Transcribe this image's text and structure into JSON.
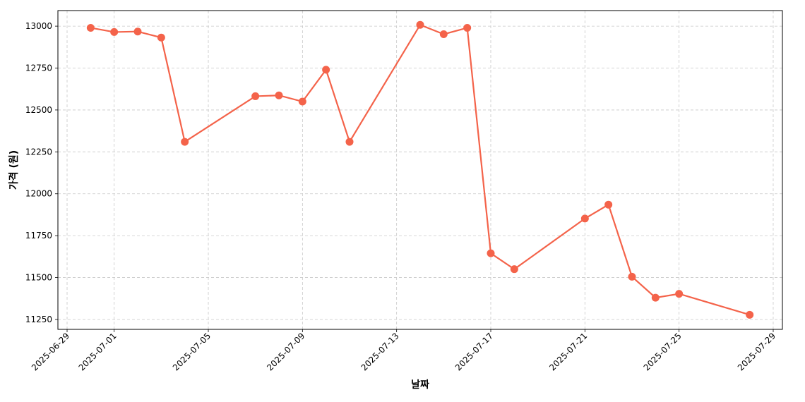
{
  "chart_data": {
    "type": "line",
    "x_label": "날짜",
    "y_label": "가격 (원)",
    "x": [
      "2025-06-30",
      "2025-07-01",
      "2025-07-02",
      "2025-07-03",
      "2025-07-04",
      "2025-07-07",
      "2025-07-08",
      "2025-07-09",
      "2025-07-10",
      "2025-07-11",
      "2025-07-14",
      "2025-07-15",
      "2025-07-16",
      "2025-07-17",
      "2025-07-18",
      "2025-07-21",
      "2025-07-22",
      "2025-07-23",
      "2025-07-24",
      "2025-07-25",
      "2025-07-28"
    ],
    "values": [
      12990,
      12965,
      12968,
      12932,
      12310,
      12582,
      12587,
      12550,
      12740,
      12310,
      13008,
      12952,
      12990,
      11645,
      11550,
      11852,
      11935,
      11505,
      11380,
      11403,
      11278
    ],
    "color": "#f4634a",
    "xlim": [
      "2025-06-28T14:38",
      "2025-07-29T09:22"
    ],
    "xticks": [
      "2025-06-29",
      "2025-07-01",
      "2025-07-05",
      "2025-07-09",
      "2025-07-13",
      "2025-07-17",
      "2025-07-21",
      "2025-07-25",
      "2025-07-29"
    ],
    "ylim": [
      11191,
      13093
    ],
    "yticks": [
      11250,
      11500,
      11750,
      12000,
      12250,
      12500,
      12750,
      13000
    ],
    "grid": true
  }
}
